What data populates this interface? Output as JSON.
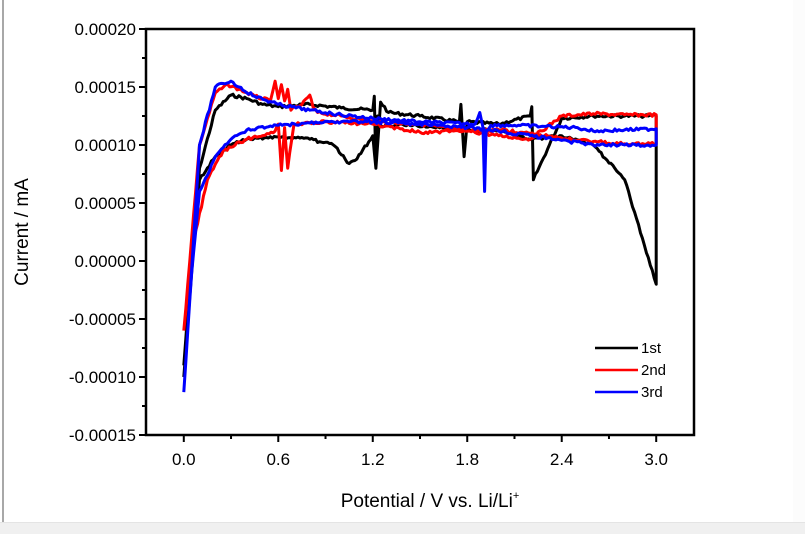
{
  "chart_data": {
    "type": "line",
    "title": "",
    "xlabel": "Potential / V vs. Li/Li",
    "xlabel_superscript": "+",
    "ylabel": "Current / mA",
    "xlim": [
      -0.24,
      3.24
    ],
    "ylim": [
      -0.00015,
      0.0002
    ],
    "x_ticks": [
      "0.0",
      "0.6",
      "1.2",
      "1.8",
      "2.4",
      "3.0"
    ],
    "x_tick_values": [
      0.0,
      0.6,
      1.2,
      1.8,
      2.4,
      3.0
    ],
    "y_ticks": [
      "0.00020",
      "0.00015",
      "0.00010",
      "0.00005",
      "0.00000",
      "-0.00005",
      "-0.00010",
      "-0.00015"
    ],
    "y_tick_values": [
      0.0002,
      0.00015,
      0.0001,
      5e-05,
      0.0,
      -5e-05,
      -0.0001,
      -0.00015
    ],
    "grid": false,
    "legend_position": "bottom-right",
    "series": [
      {
        "name": "1st",
        "color": "#000000",
        "x": [
          0.0,
          0.1,
          0.2,
          0.3,
          0.4,
          0.5,
          0.6,
          0.8,
          1.0,
          1.2,
          1.21,
          1.22,
          1.25,
          1.3,
          1.5,
          1.75,
          1.76,
          1.78,
          1.8,
          2.0,
          2.2,
          2.21,
          2.22,
          2.4,
          2.6,
          2.8,
          2.9,
          2.95,
          2.98,
          3.0,
          3.0,
          2.8,
          2.6,
          2.4,
          2.2,
          2.0,
          1.8,
          1.6,
          1.4,
          1.25,
          1.23,
          1.22,
          1.2,
          1.1,
          1.05,
          0.95,
          0.8,
          0.6,
          0.4,
          0.3,
          0.2,
          0.1,
          0.05,
          0.0
        ],
        "y": [
          -0.0001,
          8e-05,
          0.00013,
          0.000143,
          0.00014,
          0.000135,
          0.000133,
          0.000135,
          0.000132,
          0.00013,
          0.000142,
          8e-05,
          0.000137,
          0.000128,
          0.000125,
          0.00012,
          0.000135,
          9e-05,
          0.00012,
          0.000118,
          0.000125,
          0.000133,
          7e-05,
          0.000123,
          0.000125,
          0.000125,
          0.000125,
          0.000125,
          0.000126,
          0.000125,
          -2e-05,
          7e-05,
          0.0001,
          0.000108,
          0.000105,
          0.000113,
          0.000113,
          0.000115,
          0.000117,
          0.000117,
          0.000125,
          8e-05,
          0.000108,
          8.8e-05,
          8.4e-05,
          0.0001,
          0.000105,
          0.000107,
          0.000105,
          0.0001,
          9e-05,
          7e-05,
          0.0,
          -9e-05
        ]
      },
      {
        "name": "2nd",
        "color": "#ff0000",
        "x": [
          0.0,
          0.1,
          0.2,
          0.28,
          0.35,
          0.45,
          0.55,
          0.58,
          0.6,
          0.62,
          0.64,
          0.66,
          0.68,
          0.75,
          0.8,
          0.82,
          0.85,
          1.0,
          1.2,
          1.5,
          1.8,
          2.0,
          2.2,
          2.4,
          2.6,
          2.8,
          3.0,
          3.0,
          2.8,
          2.6,
          2.4,
          2.2,
          2.0,
          1.8,
          1.5,
          1.2,
          0.9,
          0.7,
          0.66,
          0.64,
          0.62,
          0.6,
          0.58,
          0.4,
          0.25,
          0.15,
          0.05,
          0.0
        ],
        "y": [
          -6e-05,
          0.0001,
          0.000145,
          0.000152,
          0.000148,
          0.000142,
          0.000138,
          0.000155,
          0.00014,
          0.000152,
          0.000138,
          0.000148,
          0.00013,
          0.000135,
          0.000143,
          0.000133,
          0.000128,
          0.000125,
          0.00012,
          0.000118,
          0.000112,
          0.000108,
          0.000105,
          0.000125,
          0.000127,
          0.000126,
          0.000126,
          0.000101,
          0.000101,
          0.000103,
          0.000106,
          0.00011,
          0.000113,
          0.000112,
          0.000111,
          0.000118,
          0.00012,
          0.000118,
          8e-05,
          0.000115,
          7.8e-05,
          0.000118,
          0.000112,
          0.000105,
          9.5e-05,
          7e-05,
          1e-05,
          -6e-05
        ]
      },
      {
        "name": "3rd",
        "color": "#0000ff",
        "x": [
          0.0,
          0.1,
          0.2,
          0.25,
          0.3,
          0.35,
          0.45,
          0.6,
          0.8,
          1.0,
          1.2,
          1.5,
          1.85,
          1.88,
          1.9,
          1.91,
          1.92,
          1.95,
          2.1,
          2.3,
          2.5,
          2.6,
          2.8,
          3.0,
          3.0,
          2.8,
          2.6,
          2.4,
          2.2,
          2.0,
          1.8,
          1.5,
          1.2,
          1.0,
          0.8,
          0.6,
          0.4,
          0.3,
          0.2,
          0.1,
          0.05,
          0.0
        ],
        "y": [
          -0.000113,
          0.0001,
          0.00015,
          0.000153,
          0.000155,
          0.00015,
          0.000142,
          0.000135,
          0.00013,
          0.000126,
          0.000123,
          0.00012,
          0.000118,
          0.000128,
          0.000115,
          6e-05,
          0.000112,
          0.000117,
          0.000117,
          0.000116,
          0.000115,
          0.000112,
          0.000113,
          0.000114,
          0.0001,
          0.0001,
          0.0001,
          0.000104,
          0.000108,
          0.000112,
          0.000115,
          0.000118,
          0.00012,
          0.00012,
          0.000119,
          0.000117,
          0.000113,
          0.000105,
          9e-05,
          6e-05,
          -1e-05,
          -0.000113
        ]
      }
    ]
  }
}
